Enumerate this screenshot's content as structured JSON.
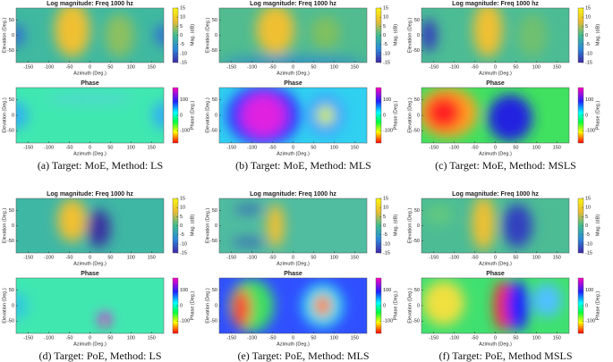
{
  "axes": {
    "mag_title": "Log magnitude: Freq 1000 hz",
    "phase_title": "Phase",
    "xlabel": "Azimuth (Deg.)",
    "ylabel": "Elevation (Deg.)",
    "xlim": [
      -180,
      180
    ],
    "xticks": [
      -150,
      -100,
      -50,
      0,
      50,
      100,
      150
    ],
    "ylim": [
      -90,
      90
    ],
    "yticks": [
      50,
      0,
      -50
    ],
    "mag_cbar_label": "Mag. (dB)",
    "mag_cbar_lim": [
      -15,
      15
    ],
    "mag_cbar_ticks": [
      15,
      10,
      5,
      0,
      -5,
      -10,
      -15
    ],
    "phase_cbar_label": "Phase (Deg.)",
    "phase_cbar_lim": [
      -180,
      180
    ],
    "phase_cbar_ticks": [
      100,
      0,
      -100
    ]
  },
  "subfigures": [
    {
      "caption": "(a) Target: MoE, Method: LS"
    },
    {
      "caption": "(b) Target: MoE, Method: MLS"
    },
    {
      "caption": "(c) Target: MoE, Method: MSLS"
    },
    {
      "caption": "(d) Target: PoE, Method: LS"
    },
    {
      "caption": "(e) Target: PoE, Method: MLS"
    },
    {
      "caption": "(f) Target: PoE, Method MSLS"
    }
  ]
}
